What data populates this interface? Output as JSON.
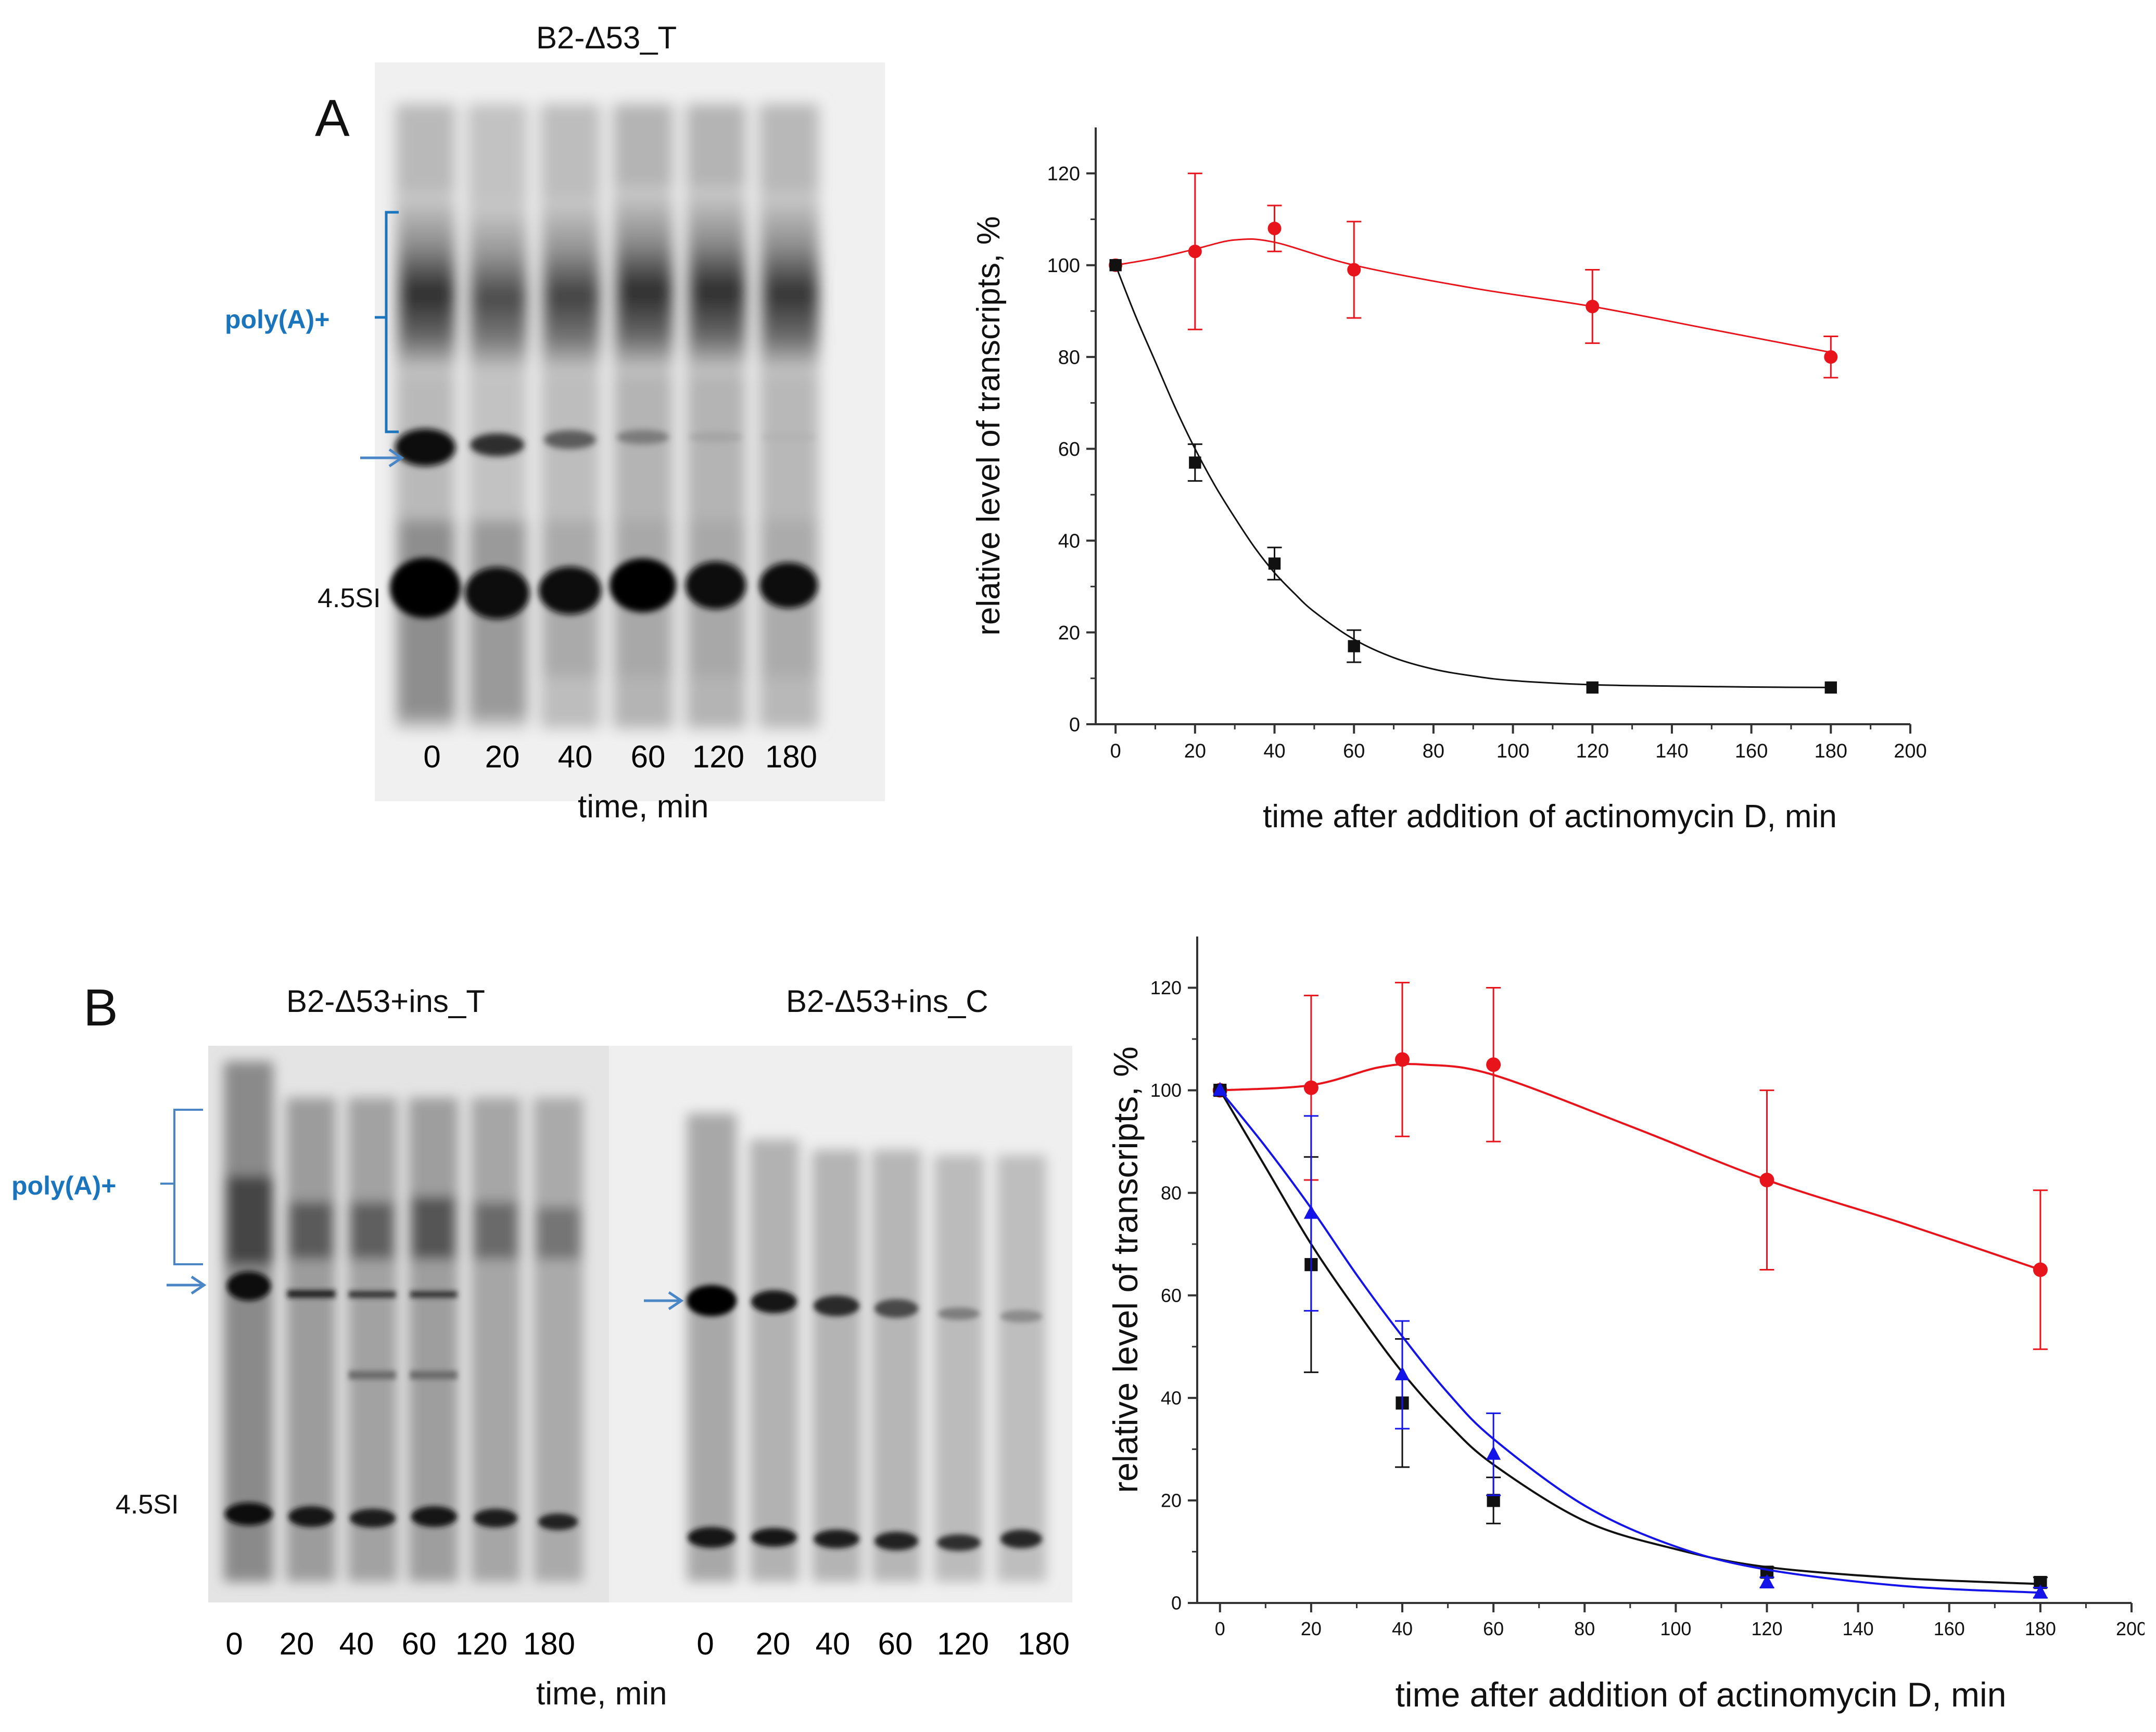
{
  "colors": {
    "red": "#e8141c",
    "black": "#111111",
    "blue": "#1414e8",
    "annotation_blue": "#1a75bc",
    "axis": "#333333",
    "gel_bg": "#f2f2f2",
    "gel_dark": "#0e0e0e"
  },
  "panel_a": {
    "letter": "A",
    "gel": {
      "title": "B2-Δ53_T",
      "lanes": [
        "0",
        "20",
        "40",
        "60",
        "120",
        "180"
      ],
      "time_label": "time, min",
      "polya_label": "poly(A)+",
      "band_label": "4.5SI",
      "arrow_icon": "arrow-right-icon"
    }
  },
  "panel_b": {
    "letter": "B",
    "gel_t": {
      "title": "B2-Δ53+ins_T",
      "lanes": [
        "0",
        "20",
        "40",
        "60",
        "120",
        "180"
      ],
      "polya_label": "poly(A)+",
      "band_label": "4.5SI",
      "arrow_icon": "arrow-right-icon"
    },
    "gel_c": {
      "title": "B2-Δ53+ins_C",
      "lanes": [
        "0",
        "20",
        "40",
        "60",
        "120",
        "180"
      ],
      "arrow_icon": "arrow-right-icon"
    },
    "time_label": "time, min"
  },
  "chart_data": [
    {
      "id": "chart-a",
      "type": "scatter",
      "title": "",
      "xlabel": "time after addition of actinomycin D, min",
      "ylabel": "relative level of transcripts, %",
      "xlim": [
        -5,
        200
      ],
      "ylim": [
        0,
        130
      ],
      "xticks": [
        0,
        20,
        40,
        60,
        80,
        100,
        120,
        140,
        160,
        180,
        200
      ],
      "yticks": [
        0,
        20,
        40,
        60,
        80,
        100,
        120
      ],
      "grid": false,
      "series": [
        {
          "name": "red",
          "color": "#e8141c",
          "marker": "circle",
          "x": [
            0,
            20,
            40,
            60,
            120,
            180
          ],
          "y": [
            100,
            103,
            108,
            99,
            91,
            80
          ],
          "err": [
            0,
            17,
            5,
            10.5,
            8,
            4.5
          ],
          "curve_x": [
            0,
            10,
            20,
            30,
            40,
            60,
            90,
            120,
            150,
            180
          ],
          "curve_y": [
            100,
            101.5,
            103.5,
            105.5,
            105,
            100,
            95,
            91,
            86,
            81
          ]
        },
        {
          "name": "black",
          "color": "#111111",
          "marker": "square",
          "x": [
            0,
            20,
            40,
            60,
            120,
            180
          ],
          "y": [
            100,
            57,
            35,
            17,
            8,
            8
          ],
          "err": [
            0,
            4,
            3.5,
            3.5,
            0,
            0
          ],
          "curve_x": [
            0,
            5,
            10,
            15,
            20,
            25,
            30,
            35,
            40,
            45,
            50,
            60,
            70,
            80,
            90,
            100,
            120,
            140,
            160,
            180
          ],
          "curve_y": [
            100,
            89,
            79,
            69,
            60,
            52,
            45,
            38.5,
            33,
            28.5,
            24.5,
            18.5,
            14.5,
            12,
            10.5,
            9.5,
            8.6,
            8.3,
            8.1,
            8
          ]
        }
      ]
    },
    {
      "id": "chart-b",
      "type": "scatter",
      "title": "",
      "xlabel": "time after addition of actinomycin D, min",
      "ylabel": "relative level of transcripts, %",
      "xlim": [
        -5,
        200
      ],
      "ylim": [
        0,
        130
      ],
      "xticks": [
        0,
        20,
        40,
        60,
        80,
        100,
        120,
        140,
        160,
        180,
        200
      ],
      "yticks": [
        0,
        20,
        40,
        60,
        80,
        100,
        120
      ],
      "grid": false,
      "series": [
        {
          "name": "red",
          "color": "#e8141c",
          "marker": "circle",
          "x": [
            0,
            20,
            40,
            60,
            120,
            180
          ],
          "y": [
            100,
            100.5,
            106,
            105,
            82.5,
            65
          ],
          "err": [
            0,
            18,
            15,
            15,
            17.5,
            15.5
          ],
          "curve_x": [
            0,
            20,
            35,
            45,
            60,
            90,
            120,
            150,
            180
          ],
          "curve_y": [
            100,
            101,
            104.5,
            105,
            103,
            93,
            82.5,
            74,
            65
          ]
        },
        {
          "name": "black",
          "color": "#111111",
          "marker": "square",
          "x": [
            0,
            20,
            40,
            60,
            120,
            180
          ],
          "y": [
            100,
            66,
            39,
            20,
            6,
            4
          ],
          "err": [
            0,
            21,
            12.5,
            4.5,
            1,
            1
          ],
          "curve_x": [
            0,
            10,
            20,
            30,
            40,
            50,
            60,
            80,
            100,
            120,
            150,
            180
          ],
          "curve_y": [
            100,
            85,
            70,
            57,
            45,
            35,
            27,
            16,
            10.5,
            7,
            4.8,
            3.7
          ]
        },
        {
          "name": "blue",
          "color": "#1414e8",
          "marker": "triangle",
          "x": [
            0,
            20,
            40,
            60,
            120,
            180
          ],
          "y": [
            100,
            76,
            44.5,
            29,
            4,
            2
          ],
          "err": [
            0,
            19,
            10.5,
            8,
            1,
            1
          ],
          "curve_x": [
            0,
            10,
            20,
            30,
            40,
            50,
            60,
            80,
            100,
            120,
            150,
            180
          ],
          "curve_y": [
            100,
            89,
            77,
            64,
            52,
            41,
            32,
            19,
            11,
            6.5,
            3.3,
            2
          ]
        }
      ]
    }
  ]
}
